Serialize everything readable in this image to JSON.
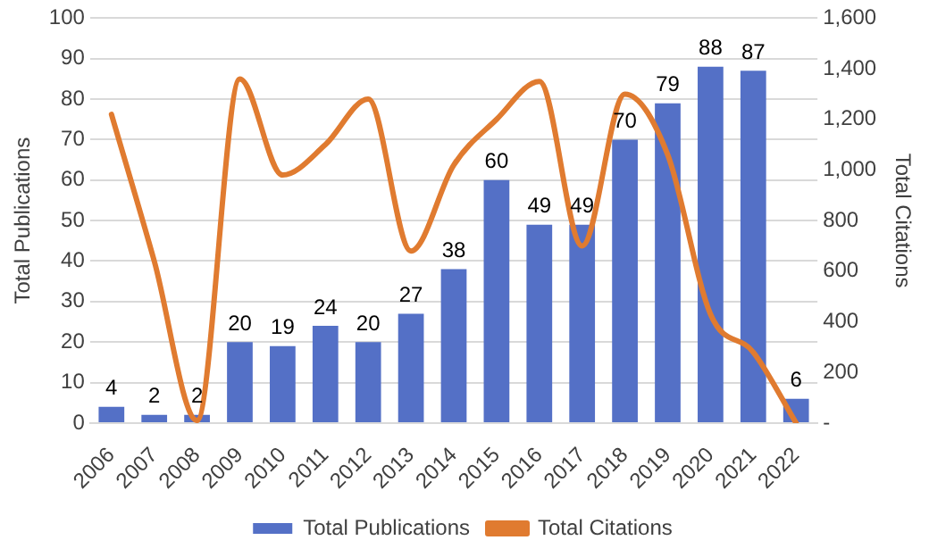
{
  "chart_data": {
    "type": "bar",
    "categories": [
      "2006",
      "2007",
      "2008",
      "2009",
      "2010",
      "2011",
      "2012",
      "2013",
      "2014",
      "2015",
      "2016",
      "2017",
      "2018",
      "2019",
      "2020",
      "2021",
      "2022"
    ],
    "series": [
      {
        "name": "Total Publications",
        "color": "#5470c6",
        "values": [
          4,
          2,
          2,
          20,
          19,
          24,
          20,
          27,
          38,
          60,
          49,
          49,
          70,
          79,
          88,
          87,
          6
        ],
        "value_labels": [
          "4",
          "2",
          "2",
          "20",
          "19",
          "24",
          "20",
          "27",
          "38",
          "60",
          "49",
          "49",
          "70",
          "79",
          "88",
          "87",
          "6"
        ]
      },
      {
        "name": "Total Citations",
        "type": "line",
        "axis": "y2",
        "color": "#e07b30",
        "values": [
          1220,
          640,
          10,
          1360,
          980,
          1100,
          1280,
          680,
          1020,
          1200,
          1350,
          700,
          1300,
          1060,
          430,
          280,
          0
        ]
      }
    ],
    "ylabel": "Total Publications",
    "y2label": "Total Citations",
    "ylim": [
      0,
      100
    ],
    "yticks": [
      0,
      10,
      20,
      30,
      40,
      50,
      60,
      70,
      80,
      90,
      100
    ],
    "y2lim": [
      0,
      1600
    ],
    "y2ticks": [
      {
        "value": 0,
        "label": "-"
      },
      {
        "value": 200,
        "label": "200"
      },
      {
        "value": 400,
        "label": "400"
      },
      {
        "value": 600,
        "label": "600"
      },
      {
        "value": 800,
        "label": "800"
      },
      {
        "value": 1000,
        "label": "1,000"
      },
      {
        "value": 1200,
        "label": "1,200"
      },
      {
        "value": 1400,
        "label": "1,400"
      },
      {
        "value": 1600,
        "label": "1,600"
      }
    ],
    "grid": "y",
    "legend": "bottom",
    "marker": "none",
    "line_style": "solid"
  }
}
